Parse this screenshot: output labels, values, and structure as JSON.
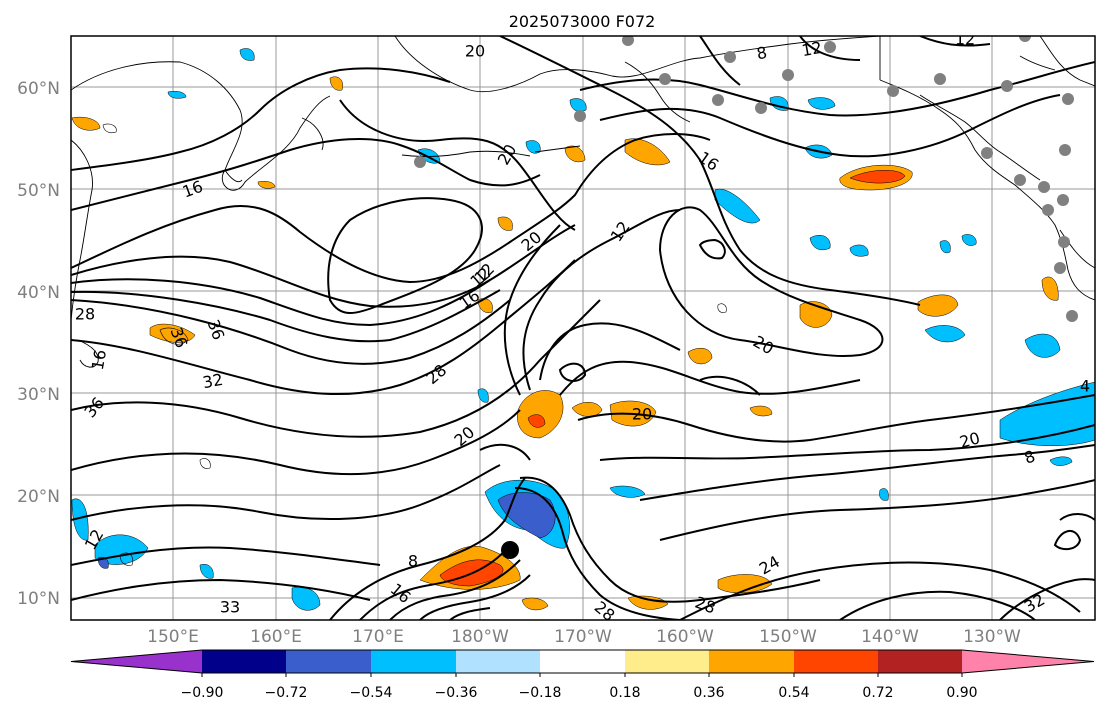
{
  "title": "2025073000 F072",
  "map": {
    "lat_ticks": [
      "60°N",
      "50°N",
      "40°N",
      "30°N",
      "20°N",
      "10°N"
    ],
    "lon_ticks": [
      "150°E",
      "160°E",
      "170°E",
      "180°W",
      "170°W",
      "160°W",
      "150°W",
      "140°W",
      "130°W"
    ]
  },
  "contour_labels": [
    "8",
    "12",
    "16",
    "20",
    "16",
    "12",
    "20",
    "12",
    "16",
    "20",
    "20",
    "36",
    "32",
    "36",
    "28",
    "20",
    "20",
    "8",
    "16",
    "12",
    "28",
    "28",
    "24",
    "32",
    "8",
    "4",
    "16",
    "12",
    "20",
    "12",
    "36",
    "28",
    "33"
  ],
  "colorbar": {
    "colors": [
      "#9932CC",
      "#00008B",
      "#3A5FCD",
      "#00BFFF",
      "#B0E2FF",
      "#FFFFFF",
      "#FFEC8B",
      "#FFA500",
      "#FF4500",
      "#B22222",
      "#FF82AB"
    ],
    "ticks": [
      "−0.90",
      "−0.72",
      "−0.54",
      "−0.36",
      "−0.18",
      "0.18",
      "0.36",
      "0.54",
      "0.72",
      "0.90"
    ]
  }
}
